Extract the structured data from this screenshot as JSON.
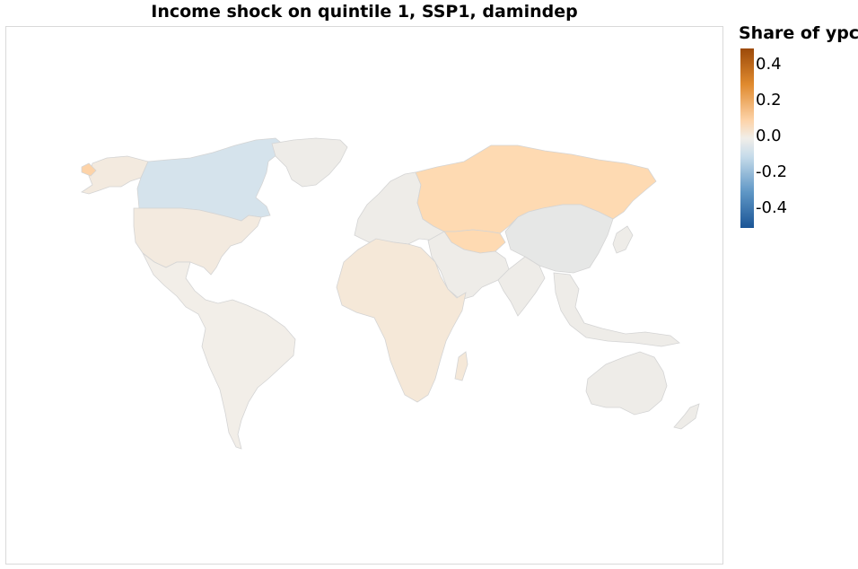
{
  "title": "Income shock on quintile 1, SSP1, damindep",
  "legend": {
    "title": "Share of ypc",
    "ticks": [
      "0.4",
      "0.2",
      "0.0",
      "-0.2",
      "-0.4"
    ],
    "range": [
      -0.5,
      0.45
    ],
    "colors": {
      "max": "#9c4a0a",
      "mid": "#f1eee9",
      "min": "#1b5596"
    }
  },
  "regions": [
    {
      "name": "Canada",
      "value": -0.08,
      "color": "#d5e3ec"
    },
    {
      "name": "USA",
      "value": 0.03,
      "color": "#f3eadf"
    },
    {
      "name": "Alaska",
      "value": 0.03,
      "color": "#f3eadf"
    },
    {
      "name": "Greenland",
      "value": 0.0,
      "color": "#eeece8"
    },
    {
      "name": "Latin America",
      "value": 0.02,
      "color": "#f2eee8"
    },
    {
      "name": "Europe",
      "value": 0.0,
      "color": "#eeece8"
    },
    {
      "name": "Russia",
      "value": 0.15,
      "color": "#fedab2"
    },
    {
      "name": "Africa",
      "value": 0.05,
      "color": "#f5e8d8"
    },
    {
      "name": "Middle East",
      "value": 0.0,
      "color": "#eeece8"
    },
    {
      "name": "China",
      "value": -0.01,
      "color": "#e6e7e6"
    },
    {
      "name": "South Asia",
      "value": 0.0,
      "color": "#eeece8"
    },
    {
      "name": "Southeast Asia",
      "value": 0.0,
      "color": "#eeece8"
    },
    {
      "name": "Japan",
      "value": 0.0,
      "color": "#eeece8"
    },
    {
      "name": "Australia",
      "value": 0.0,
      "color": "#eeece8"
    },
    {
      "name": "New Zealand",
      "value": 0.0,
      "color": "#eeece8"
    },
    {
      "name": "Madagascar",
      "value": 0.05,
      "color": "#f5e8d8"
    }
  ]
}
